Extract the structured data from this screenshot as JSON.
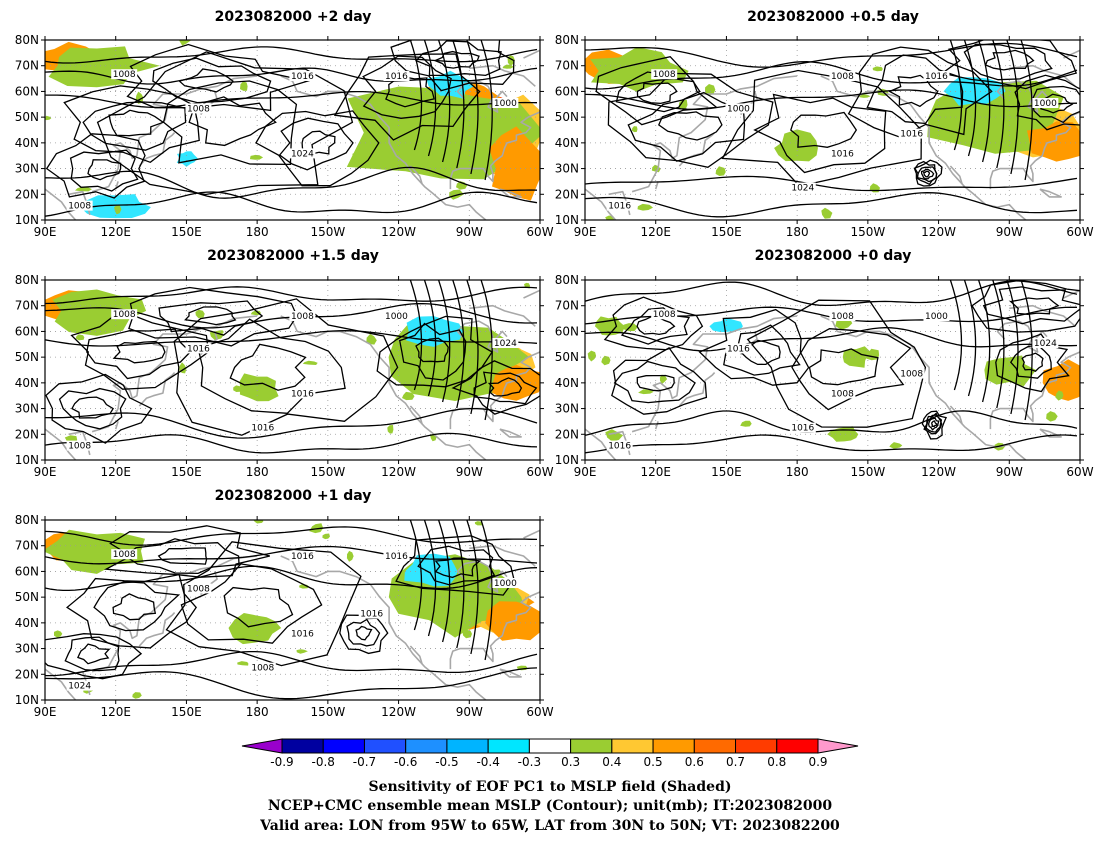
{
  "colors": {
    "contour": "#000000",
    "coast": "#a8a8a8",
    "grid": "#9a9a9a",
    "shade_green": "#9acd32",
    "shade_yellow": "#ffc832",
    "shade_orange": "#ff9a00",
    "shade_dark_orange": "#ff6a00",
    "shade_red": "#ff2800",
    "shade_cyan": "#32e6ff"
  },
  "lon_ticks": [
    "90E",
    "120E",
    "150E",
    "180",
    "150W",
    "120W",
    "90W",
    "60W"
  ],
  "lat_ticks": [
    "80N",
    "70N",
    "60N",
    "50N",
    "40N",
    "30N",
    "20N",
    "10N"
  ],
  "panels": [
    {
      "title": "2023082000 +2 day",
      "contour_labels": [
        "1008",
        "1016",
        "1008",
        "1016",
        "1000",
        "1024",
        "1008"
      ],
      "shade": "strong"
    },
    {
      "title": "2023082000 +0.5 day",
      "contour_labels": [
        "1008",
        "1008",
        "1000",
        "1016",
        "1000",
        "1016",
        "1016",
        "1024",
        "1016"
      ],
      "shade": "moderate"
    },
    {
      "title": "2023082000 +1.5 day",
      "contour_labels": [
        "1008",
        "1008",
        "1016",
        "1000",
        "1024",
        "1016",
        "1008",
        "1016"
      ],
      "shade": "moderate"
    },
    {
      "title": "2023082000 +0 day",
      "contour_labels": [
        "1008",
        "1008",
        "1016",
        "1000",
        "1024",
        "1008",
        "1016",
        "1016",
        "1008"
      ],
      "shade": "weak"
    },
    {
      "title": "2023082000 +1 day",
      "contour_labels": [
        "1008",
        "1016",
        "1008",
        "1016",
        "1000",
        "1016",
        "1024",
        "1008",
        "1016"
      ],
      "shade": "moderate"
    }
  ],
  "colorbar": {
    "labels": [
      "-0.9",
      "-0.8",
      "-0.7",
      "-0.6",
      "-0.5",
      "-0.4",
      "-0.3",
      "0.3",
      "0.4",
      "0.5",
      "0.6",
      "0.7",
      "0.8",
      "0.9"
    ],
    "colors": [
      "#9900cc",
      "#0000a0",
      "#0000ff",
      "#2050ff",
      "#1e90ff",
      "#00b4ff",
      "#00e6ff",
      "#ffffff",
      "#9acd32",
      "#ffc832",
      "#ff9a00",
      "#ff6a00",
      "#ff3c00",
      "#ff0000",
      "#ff99cc"
    ]
  },
  "caption": {
    "line1": "Sensitivity of EOF PC1 to MSLP field (Shaded)",
    "line2": "NCEP+CMC ensemble mean MSLP (Contour); unit(mb); IT:2023082000",
    "line3": "Valid area: LON from 95W to 65W, LAT from 30N to 50N; VT: 2023082200"
  }
}
